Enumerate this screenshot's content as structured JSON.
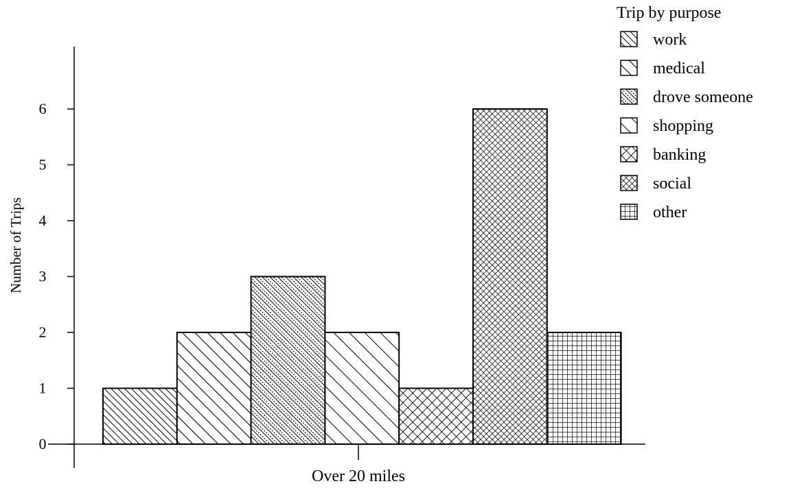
{
  "chart_data": {
    "type": "bar",
    "categories": [
      "Over 20 miles"
    ],
    "ylabel": "Number of Trips",
    "xlabel": "",
    "ylim": [
      0,
      7
    ],
    "yticks": [
      0,
      1,
      2,
      3,
      4,
      5,
      6
    ],
    "grid": false,
    "legend": {
      "title": "Trip by purpose",
      "placement": "top-right"
    },
    "series": [
      {
        "name": "work",
        "values": [
          1
        ],
        "pattern": "dense-diagonal"
      },
      {
        "name": "medical",
        "values": [
          2
        ],
        "pattern": "wide-diagonal"
      },
      {
        "name": "drove someone",
        "values": [
          3
        ],
        "pattern": "dashed-diagonal"
      },
      {
        "name": "shopping",
        "values": [
          2
        ],
        "pattern": "sparse-diagonal"
      },
      {
        "name": "banking",
        "values": [
          1
        ],
        "pattern": "coarse-crosshatch"
      },
      {
        "name": "social",
        "values": [
          6
        ],
        "pattern": "fine-crosshatch"
      },
      {
        "name": "other",
        "values": [
          2
        ],
        "pattern": "grid"
      }
    ],
    "colors": {
      "stroke": "#000000",
      "background": "#ffffff"
    }
  }
}
